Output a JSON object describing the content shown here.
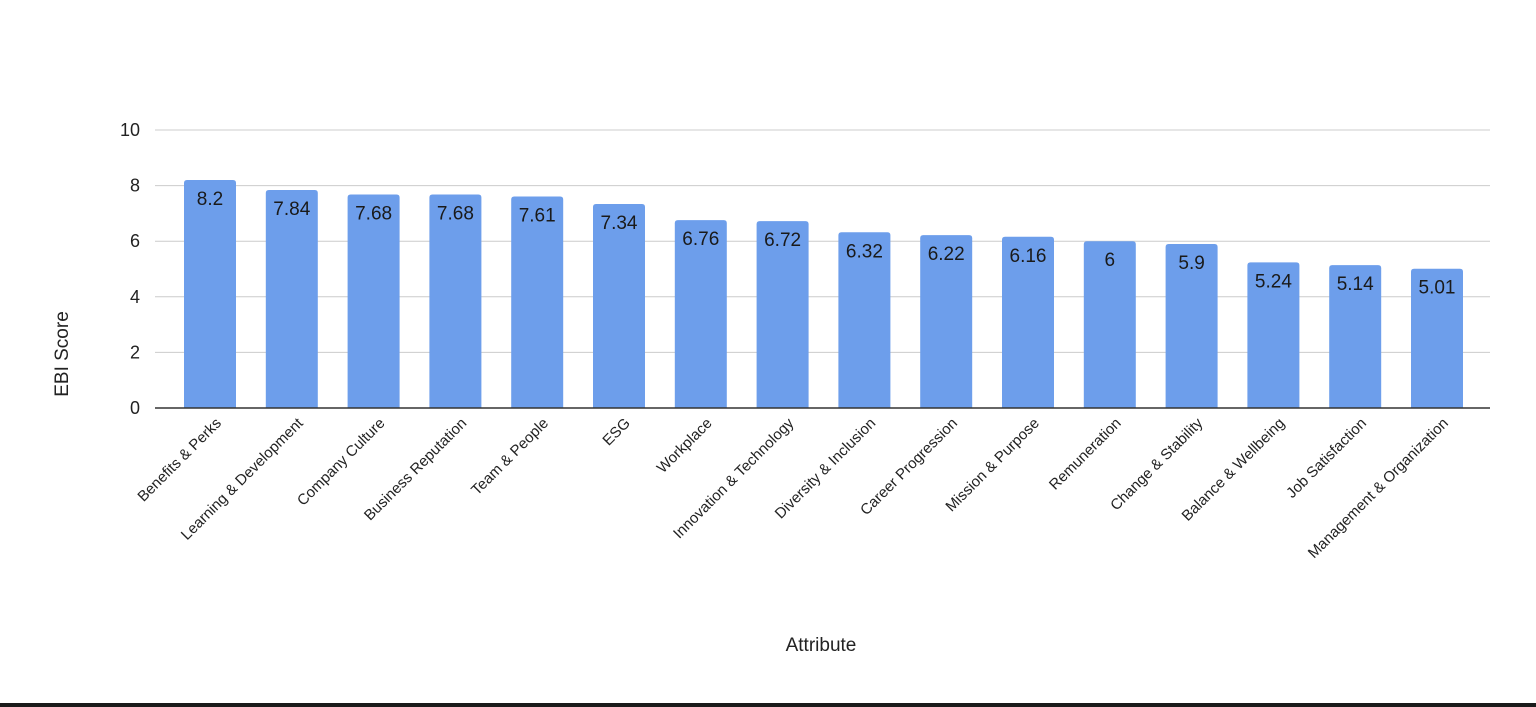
{
  "chart_data": {
    "type": "bar",
    "xlabel": "Attribute",
    "ylabel": "EBI Score",
    "ylim": [
      0,
      10
    ],
    "yticks": [
      0,
      2,
      4,
      6,
      8,
      10
    ],
    "grid": true,
    "bar_color": "#6d9eeb",
    "categories": [
      "Benefits & Perks",
      "Learning & Development",
      "Company Culture",
      "Business Reputation",
      "Team & People",
      "ESG",
      "Workplace",
      "Innovation & Technology",
      "Diversity & Inclusion",
      "Career Progression",
      "Mission & Purpose",
      "Remuneration",
      "Change & Stability",
      "Balance & Wellbeing",
      "Job Satisfaction",
      "Management & Organization"
    ],
    "values": [
      8.2,
      7.84,
      7.68,
      7.68,
      7.61,
      7.34,
      6.76,
      6.72,
      6.32,
      6.22,
      6.16,
      6,
      5.9,
      5.24,
      5.14,
      5.01
    ],
    "data_labels": [
      "8.2",
      "7.84",
      "7.68",
      "7.68",
      "7.61",
      "7.34",
      "6.76",
      "6.72",
      "6.32",
      "6.22",
      "6.16",
      "6",
      "5.9",
      "5.24",
      "5.14",
      "5.01"
    ]
  }
}
